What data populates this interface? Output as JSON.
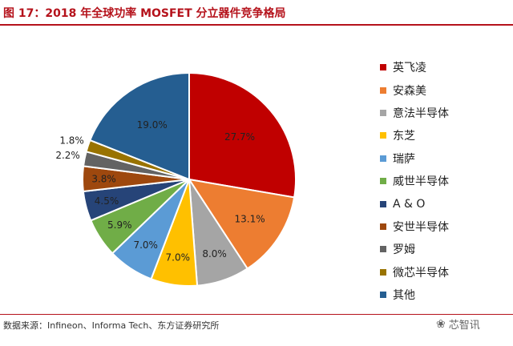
{
  "title": "图 17：2018 年全球功率 MOSFET 分立器件竞争格局",
  "source": "数据来源：Infineon、Informa Tech、东方证券研究所",
  "watermark": {
    "icon": "wechat-icon",
    "text": "芯智讯"
  },
  "chart_data": {
    "type": "pie",
    "title": "图 17：2018 年全球功率 MOSFET 分立器件竞争格局",
    "start_angle": "12 o'clock",
    "direction": "clockwise",
    "legend_position": "right",
    "slices": [
      {
        "label": "英飞凌",
        "value": 27.7,
        "value_label": "27.7%",
        "color": "#c00000"
      },
      {
        "label": "安森美",
        "value": 13.1,
        "value_label": "13.1%",
        "color": "#ed7d31"
      },
      {
        "label": "意法半导体",
        "value": 8.0,
        "value_label": "8.0%",
        "color": "#a5a5a5"
      },
      {
        "label": "东芝",
        "value": 7.0,
        "value_label": "7.0%",
        "color": "#ffc000"
      },
      {
        "label": "瑞萨",
        "value": 7.0,
        "value_label": "7.0%",
        "color": "#5b9bd5"
      },
      {
        "label": "威世半导体",
        "value": 5.9,
        "value_label": "5.9%",
        "color": "#70ad47"
      },
      {
        "label": "A & O",
        "value": 4.5,
        "value_label": "4.5%",
        "color": "#264478"
      },
      {
        "label": "安世半导体",
        "value": 3.8,
        "value_label": "3.8%",
        "color": "#9e480e"
      },
      {
        "label": "罗姆",
        "value": 2.2,
        "value_label": "2.2%",
        "color": "#636363"
      },
      {
        "label": "微芯半导体",
        "value": 1.8,
        "value_label": "1.8%",
        "color": "#997300"
      },
      {
        "label": "其他",
        "value": 19.0,
        "value_label": "19.0%",
        "color": "#255e91"
      }
    ]
  }
}
